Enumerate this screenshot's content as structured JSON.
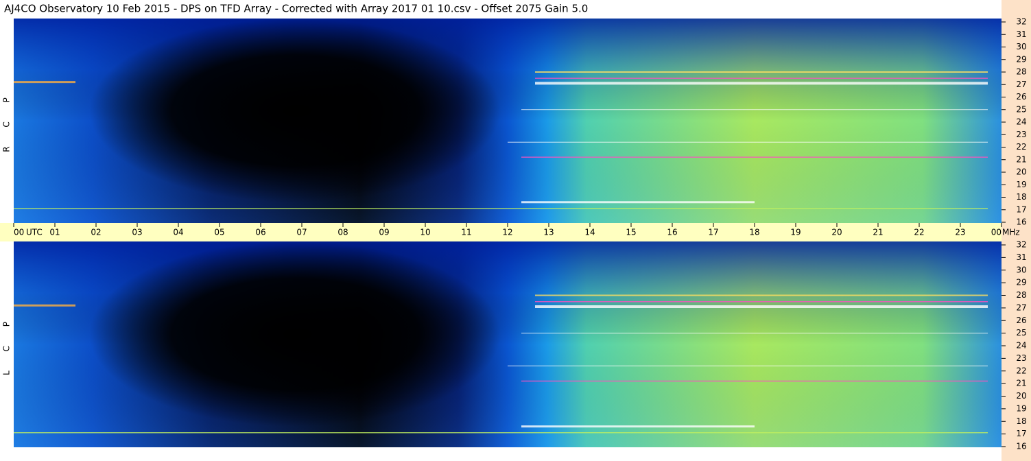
{
  "chart_data": {
    "type": "spectrogram",
    "title": "AJ4CO Observatory  10 Feb 2015  -  DPS on TFD Array  -  Corrected with Array 2017 01 10.csv  -  Offset 2075  Gain 5.0",
    "panels": [
      "R C P",
      "L C P"
    ],
    "xlabel": "UTC",
    "ylabel": "MHz",
    "xlim": [
      0,
      24
    ],
    "xticks": [
      {
        "value": 0,
        "label": "00"
      },
      {
        "value": 1,
        "label": "01"
      },
      {
        "value": 2,
        "label": "02"
      },
      {
        "value": 3,
        "label": "03"
      },
      {
        "value": 4,
        "label": "04"
      },
      {
        "value": 5,
        "label": "05"
      },
      {
        "value": 6,
        "label": "06"
      },
      {
        "value": 7,
        "label": "07"
      },
      {
        "value": 8,
        "label": "08"
      },
      {
        "value": 9,
        "label": "09"
      },
      10,
      11,
      12,
      13,
      14,
      15,
      16,
      17,
      18,
      19,
      20,
      21,
      22,
      23,
      {
        "value": 24,
        "label": "00"
      }
    ],
    "ylim": [
      16,
      32
    ],
    "yticks": [
      16,
      17,
      18,
      19,
      20,
      21,
      22,
      23,
      24,
      25,
      26,
      27,
      28,
      29,
      30,
      31,
      32
    ]
  }
}
